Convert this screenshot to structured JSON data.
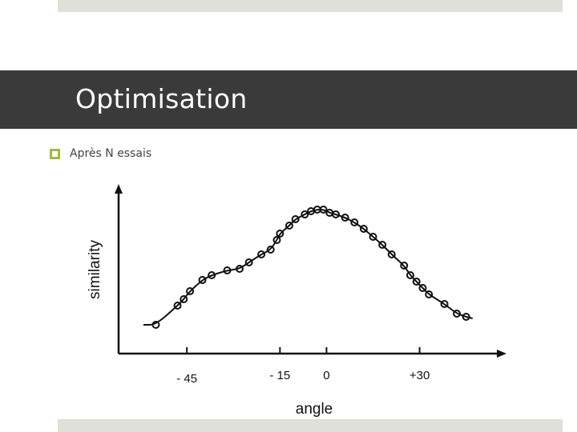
{
  "slide": {
    "title": "Optimisation",
    "bullet": "Après N essais",
    "accent_color": "#a7b93c",
    "title_bar_color": "#3a3a3a"
  },
  "chart_data": {
    "type": "scatter",
    "xlabel": "angle",
    "ylabel": "similarity",
    "xticks": [
      {
        "value": -45,
        "label": "- 45"
      },
      {
        "value": -15,
        "label": "- 15"
      },
      {
        "value": 0,
        "label": "0"
      },
      {
        "value": 30,
        "label": "+30"
      }
    ],
    "xlim": [
      -67,
      58
    ],
    "ylim": [
      0,
      100
    ],
    "grid": false,
    "points": [
      {
        "x": -55,
        "y": 8
      },
      {
        "x": -48,
        "y": 20
      },
      {
        "x": -46,
        "y": 24
      },
      {
        "x": -44,
        "y": 29
      },
      {
        "x": -40,
        "y": 36
      },
      {
        "x": -37,
        "y": 39
      },
      {
        "x": -32,
        "y": 42
      },
      {
        "x": -28,
        "y": 43
      },
      {
        "x": -25,
        "y": 47
      },
      {
        "x": -21,
        "y": 52
      },
      {
        "x": -18,
        "y": 55
      },
      {
        "x": -16,
        "y": 61
      },
      {
        "x": -15,
        "y": 65
      },
      {
        "x": -12,
        "y": 70
      },
      {
        "x": -10,
        "y": 74
      },
      {
        "x": -7,
        "y": 77
      },
      {
        "x": -5,
        "y": 79
      },
      {
        "x": -3,
        "y": 80
      },
      {
        "x": -1,
        "y": 80
      },
      {
        "x": 1,
        "y": 78
      },
      {
        "x": 3,
        "y": 77
      },
      {
        "x": 6,
        "y": 75
      },
      {
        "x": 9,
        "y": 72
      },
      {
        "x": 12,
        "y": 68
      },
      {
        "x": 15,
        "y": 63
      },
      {
        "x": 18,
        "y": 58
      },
      {
        "x": 21,
        "y": 52
      },
      {
        "x": 25,
        "y": 45
      },
      {
        "x": 27,
        "y": 39
      },
      {
        "x": 29,
        "y": 35
      },
      {
        "x": 31,
        "y": 31
      },
      {
        "x": 33,
        "y": 27
      },
      {
        "x": 38,
        "y": 21
      },
      {
        "x": 42,
        "y": 15
      },
      {
        "x": 45,
        "y": 13
      }
    ]
  }
}
